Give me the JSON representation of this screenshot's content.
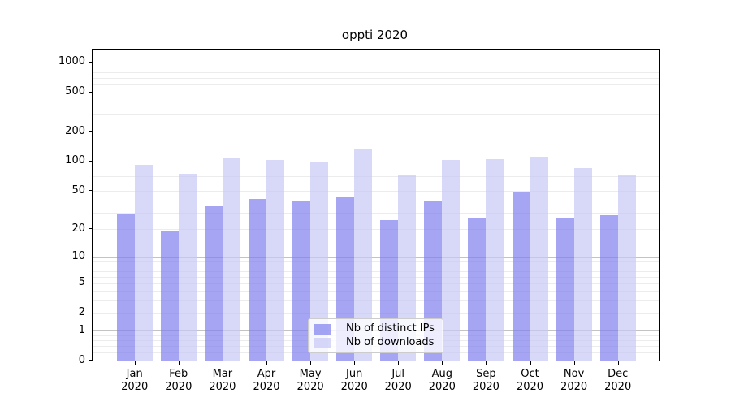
{
  "title": "oppti 2020",
  "legend": {
    "items": [
      {
        "label": "Nb of distinct IPs",
        "color": "#a6a6f4",
        "fill": "rgba(127,127,240,0.7)"
      },
      {
        "label": "Nb of downloads",
        "color": "#d8d8f8",
        "fill": "rgba(200,200,246,0.7)"
      }
    ]
  },
  "chart_data": {
    "type": "bar",
    "title": "oppti 2020",
    "categories": [
      "Jan 2020",
      "Feb 2020",
      "Mar 2020",
      "Apr 2020",
      "May 2020",
      "Jun 2020",
      "Jul 2020",
      "Aug 2020",
      "Sep 2020",
      "Oct 2020",
      "Nov 2020",
      "Dec 2020"
    ],
    "series": [
      {
        "name": "Nb of distinct IPs",
        "color": "#a6a6f4",
        "fill": "rgba(127,127,240,0.7)",
        "values": [
          29,
          19,
          35,
          41,
          40,
          44,
          25,
          40,
          26,
          48,
          26,
          28
        ]
      },
      {
        "name": "Nb of downloads",
        "color": "#d8d8f8",
        "fill": "rgba(200,200,246,0.7)",
        "values": [
          92,
          75,
          110,
          104,
          97,
          136,
          72,
          104,
          105,
          111,
          85,
          74
        ]
      }
    ],
    "xlabel": "",
    "ylabel": "",
    "yscale": "log1p",
    "ylim": [
      0,
      1400
    ],
    "yticks": [
      0,
      1,
      2,
      5,
      10,
      20,
      50,
      100,
      200,
      500,
      1000
    ],
    "minor_gridlines": [
      0.2,
      0.4,
      0.6,
      0.8,
      2,
      3,
      4,
      5,
      6,
      7,
      8,
      9,
      20,
      30,
      40,
      50,
      60,
      70,
      80,
      90,
      200,
      300,
      400,
      500,
      600,
      700,
      800,
      900
    ],
    "major_gridlines": [
      1,
      10,
      100,
      1000
    ],
    "grid": "on",
    "legend_position": "lower center"
  }
}
